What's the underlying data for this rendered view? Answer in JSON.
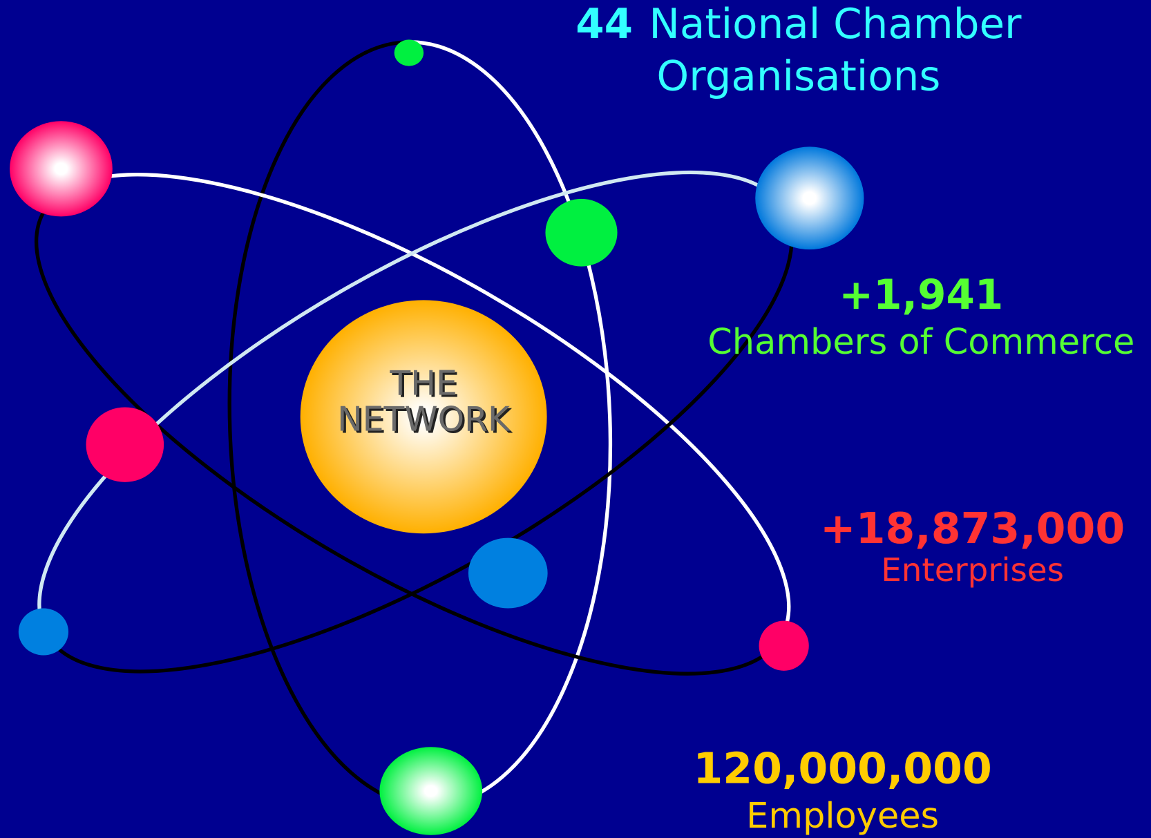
{
  "center": {
    "lines": [
      "THE",
      "NETWORK"
    ]
  },
  "stats": [
    {
      "number": "44",
      "label_lines": [
        "National Chamber",
        "Organisations"
      ]
    },
    {
      "number": "+1,941",
      "label_lines": [
        "Chambers of Commerce"
      ]
    },
    {
      "number": "+18,873,000",
      "label_lines": [
        "Enterprises"
      ]
    },
    {
      "number": "120,000,000",
      "label_lines": [
        "Employees"
      ]
    }
  ]
}
